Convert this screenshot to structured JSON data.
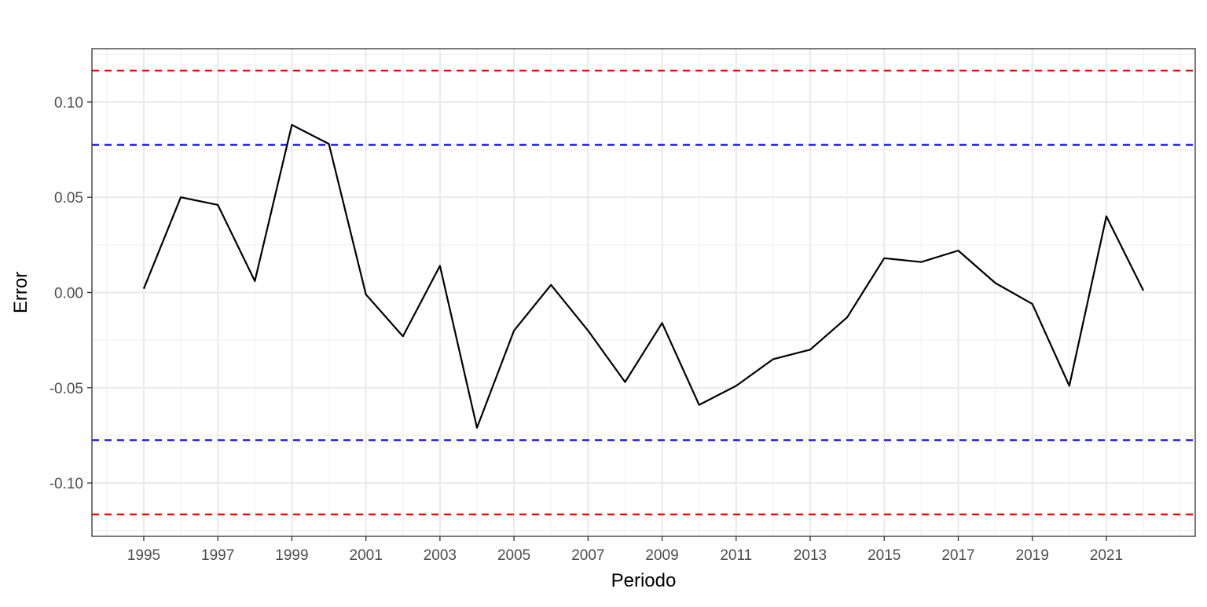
{
  "chart_data": {
    "type": "line",
    "title": "",
    "xlabel": "Periodo",
    "ylabel": "Error",
    "xlim": [
      1993.6,
      2023.4
    ],
    "ylim": [
      -0.128,
      0.128
    ],
    "grid": true,
    "x_ticks": [
      1995,
      1997,
      1999,
      2001,
      2003,
      2005,
      2007,
      2009,
      2011,
      2013,
      2015,
      2017,
      2019,
      2021
    ],
    "y_ticks": [
      0.1,
      0.05,
      0.0,
      -0.05,
      -0.1
    ],
    "y_tick_labels": [
      "0.10",
      "0.05",
      "0.00",
      "-0.05",
      "-0.10"
    ],
    "x": [
      1995,
      1996,
      1997,
      1998,
      1999,
      2000,
      2001,
      2002,
      2003,
      2004,
      2005,
      2006,
      2007,
      2008,
      2009,
      2010,
      2011,
      2012,
      2013,
      2014,
      2015,
      2016,
      2017,
      2018,
      2019,
      2020,
      2021,
      2022
    ],
    "series": [
      {
        "values": [
          0.002,
          0.05,
          0.046,
          0.006,
          0.088,
          0.078,
          -0.001,
          -0.023,
          0.014,
          -0.071,
          -0.02,
          0.004,
          -0.02,
          -0.047,
          -0.016,
          -0.059,
          -0.049,
          -0.035,
          -0.03,
          -0.013,
          0.018,
          0.016,
          0.022,
          0.005,
          -0.006,
          -0.049,
          0.04,
          0.001
        ],
        "color": "#000000"
      }
    ],
    "reference_lines": [
      {
        "y": 0.1165,
        "color": "#ff0000",
        "style": "dashed"
      },
      {
        "y": 0.0775,
        "color": "#0000ff",
        "style": "dashed"
      },
      {
        "y": -0.0775,
        "color": "#0000ff",
        "style": "dashed"
      },
      {
        "y": -0.1165,
        "color": "#ff0000",
        "style": "dashed"
      }
    ],
    "colors": {
      "panel_border": "#333333",
      "grid_major": "#ebebeb",
      "grid_minor": "#f2f2f2",
      "tick_text": "#4d4d4d"
    }
  }
}
